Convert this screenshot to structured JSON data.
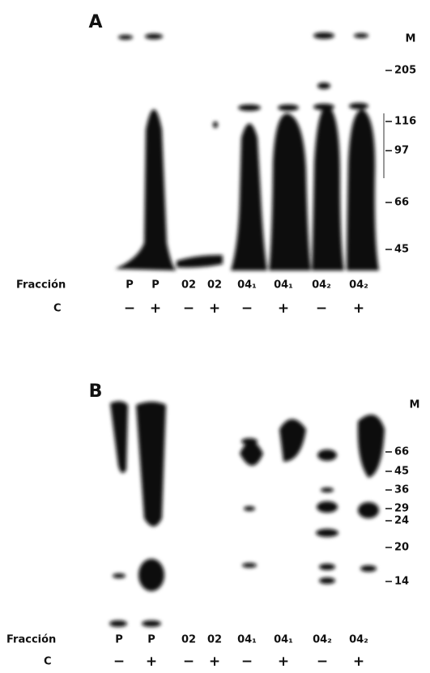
{
  "panels": [
    {
      "label": "A",
      "marker_header": "M",
      "markers": [
        "205",
        "116",
        "97",
        "66",
        "45"
      ],
      "row_labels": [
        "Fracción",
        "C"
      ],
      "lanes": [
        {
          "fraction": "P",
          "c": "−"
        },
        {
          "fraction": "P",
          "c": "+"
        },
        {
          "fraction": "02",
          "c": "−"
        },
        {
          "fraction": "02",
          "c": "+"
        },
        {
          "fraction": "04₁",
          "c": "−"
        },
        {
          "fraction": "04₁",
          "c": "+"
        },
        {
          "fraction": "04₂",
          "c": "−"
        },
        {
          "fraction": "04₂",
          "c": "+"
        }
      ]
    },
    {
      "label": "B",
      "marker_header": "M",
      "markers": [
        "66",
        "45",
        "36",
        "29",
        "24",
        "20",
        "14"
      ],
      "row_labels": [
        "Fracción",
        "C"
      ],
      "lanes": [
        {
          "fraction": "P",
          "c": "−"
        },
        {
          "fraction": "P",
          "c": "+"
        },
        {
          "fraction": "02",
          "c": "−"
        },
        {
          "fraction": "02",
          "c": "+"
        },
        {
          "fraction": "04₁",
          "c": "−"
        },
        {
          "fraction": "04₁",
          "c": "+"
        },
        {
          "fraction": "04₂",
          "c": "−"
        },
        {
          "fraction": "04₂",
          "c": "+"
        }
      ]
    }
  ]
}
